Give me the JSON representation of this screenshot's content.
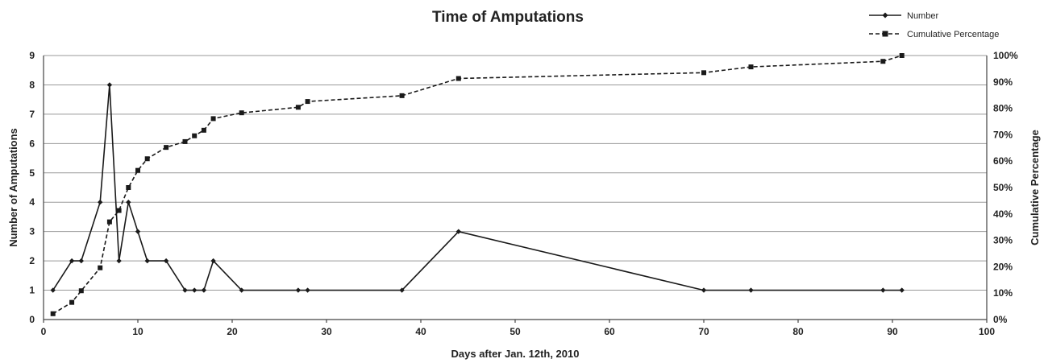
{
  "chart_data": {
    "type": "line",
    "title": "Time of Amputations",
    "xlabel": "Days after Jan. 12th, 2010",
    "ylabel": "Number of Amputations",
    "y2label": "Cumulative  Percentage",
    "xlim": [
      0,
      100
    ],
    "ylim": [
      0,
      9
    ],
    "y2lim": [
      0,
      100
    ],
    "x_ticks": [
      "0",
      "10",
      "20",
      "30",
      "40",
      "50",
      "60",
      "70",
      "80",
      "90",
      "100"
    ],
    "y_ticks": [
      "0",
      "1",
      "2",
      "3",
      "4",
      "5",
      "6",
      "7",
      "8",
      "9"
    ],
    "y2_ticks": [
      "0%",
      "10%",
      "20%",
      "30%",
      "40%",
      "50%",
      "60%",
      "70%",
      "80%",
      "90%",
      "100%"
    ],
    "grid": true,
    "legend_position": "top-right",
    "series": [
      {
        "name": "Number",
        "axis": "left",
        "line_style": "solid",
        "marker": "diamond",
        "color": "#1a1a1a",
        "points": [
          [
            1,
            1
          ],
          [
            3,
            2
          ],
          [
            4,
            2
          ],
          [
            6,
            4
          ],
          [
            7,
            8
          ],
          [
            8,
            2
          ],
          [
            9,
            4
          ],
          [
            10,
            3
          ],
          [
            11,
            2
          ],
          [
            13,
            2
          ],
          [
            15,
            1
          ],
          [
            16,
            1
          ],
          [
            17,
            1
          ],
          [
            18,
            2
          ],
          [
            21,
            1
          ],
          [
            27,
            1
          ],
          [
            28,
            1
          ],
          [
            38,
            1
          ],
          [
            44,
            3
          ],
          [
            70,
            1
          ],
          [
            75,
            1
          ],
          [
            89,
            1
          ],
          [
            91,
            1
          ]
        ]
      },
      {
        "name": "Cumulative Percentage",
        "axis": "right",
        "line_style": "dashed",
        "marker": "square",
        "color": "#1a1a1a",
        "points": [
          [
            1,
            2.2
          ],
          [
            3,
            6.5
          ],
          [
            4,
            10.9
          ],
          [
            6,
            19.6
          ],
          [
            7,
            37.0
          ],
          [
            8,
            41.3
          ],
          [
            9,
            50.0
          ],
          [
            10,
            56.5
          ],
          [
            11,
            60.9
          ],
          [
            13,
            65.2
          ],
          [
            15,
            67.4
          ],
          [
            16,
            69.6
          ],
          [
            17,
            71.7
          ],
          [
            18,
            76.1
          ],
          [
            21,
            78.3
          ],
          [
            27,
            80.4
          ],
          [
            28,
            82.6
          ],
          [
            38,
            84.8
          ],
          [
            44,
            91.3
          ],
          [
            70,
            93.5
          ],
          [
            75,
            95.7
          ],
          [
            89,
            97.8
          ],
          [
            91,
            100
          ]
        ]
      }
    ]
  }
}
